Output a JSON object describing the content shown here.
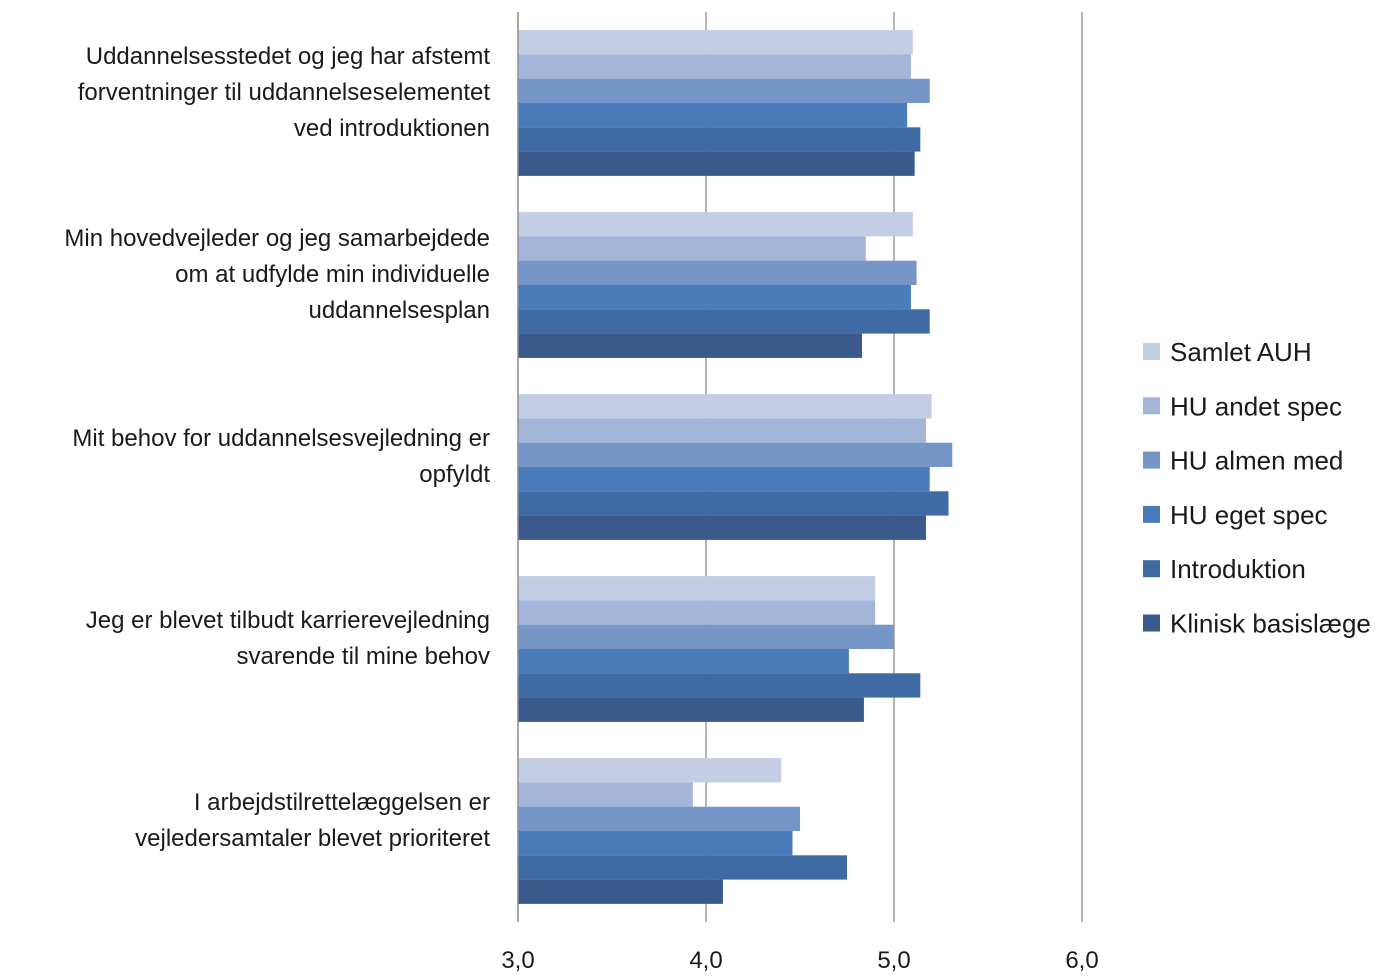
{
  "chart_data": {
    "type": "bar",
    "orientation": "horizontal",
    "xlim": [
      3.0,
      6.0
    ],
    "xticks": [
      "3,0",
      "4,0",
      "5,0",
      "6,0"
    ],
    "grid": true,
    "legend_position": "right",
    "categories": [
      [
        "Uddannelsesstedet og jeg har afstemt",
        "forventninger til uddannelseselementet",
        "ved introduktionen"
      ],
      [
        "Min hovedvejleder og jeg samarbejdede",
        "om at udfylde min individuelle",
        "uddannelsesplan"
      ],
      [
        "Mit behov for uddannelsesvejledning er",
        "opfyldt"
      ],
      [
        "Jeg er blevet tilbudt karrierevejledning",
        "svarende til mine behov"
      ],
      [
        "I arbejdstilrettelæggelsen er",
        "vejledersamtaler blevet prioriteret"
      ]
    ],
    "series": [
      {
        "name": "Samlet AUH",
        "color": "#c3cde3",
        "values": [
          5.1,
          5.1,
          5.2,
          4.9,
          4.4
        ]
      },
      {
        "name": "HU andet spec",
        "color": "#a3b5d9",
        "values": [
          5.09,
          4.85,
          5.17,
          4.9,
          3.93
        ]
      },
      {
        "name": "HU almen med",
        "color": "#7696c8",
        "values": [
          5.19,
          5.12,
          5.31,
          5.0,
          4.5
        ]
      },
      {
        "name": "HU eget spec",
        "color": "#4a7bbb",
        "values": [
          5.07,
          5.09,
          5.19,
          4.76,
          4.46
        ]
      },
      {
        "name": "Introduktion",
        "color": "#3f6aa4",
        "values": [
          5.14,
          5.19,
          5.29,
          5.14,
          4.75
        ]
      },
      {
        "name": "Klinisk basislæge",
        "color": "#3a5a8c",
        "values": [
          5.11,
          4.83,
          5.17,
          4.84,
          4.09
        ]
      }
    ]
  }
}
